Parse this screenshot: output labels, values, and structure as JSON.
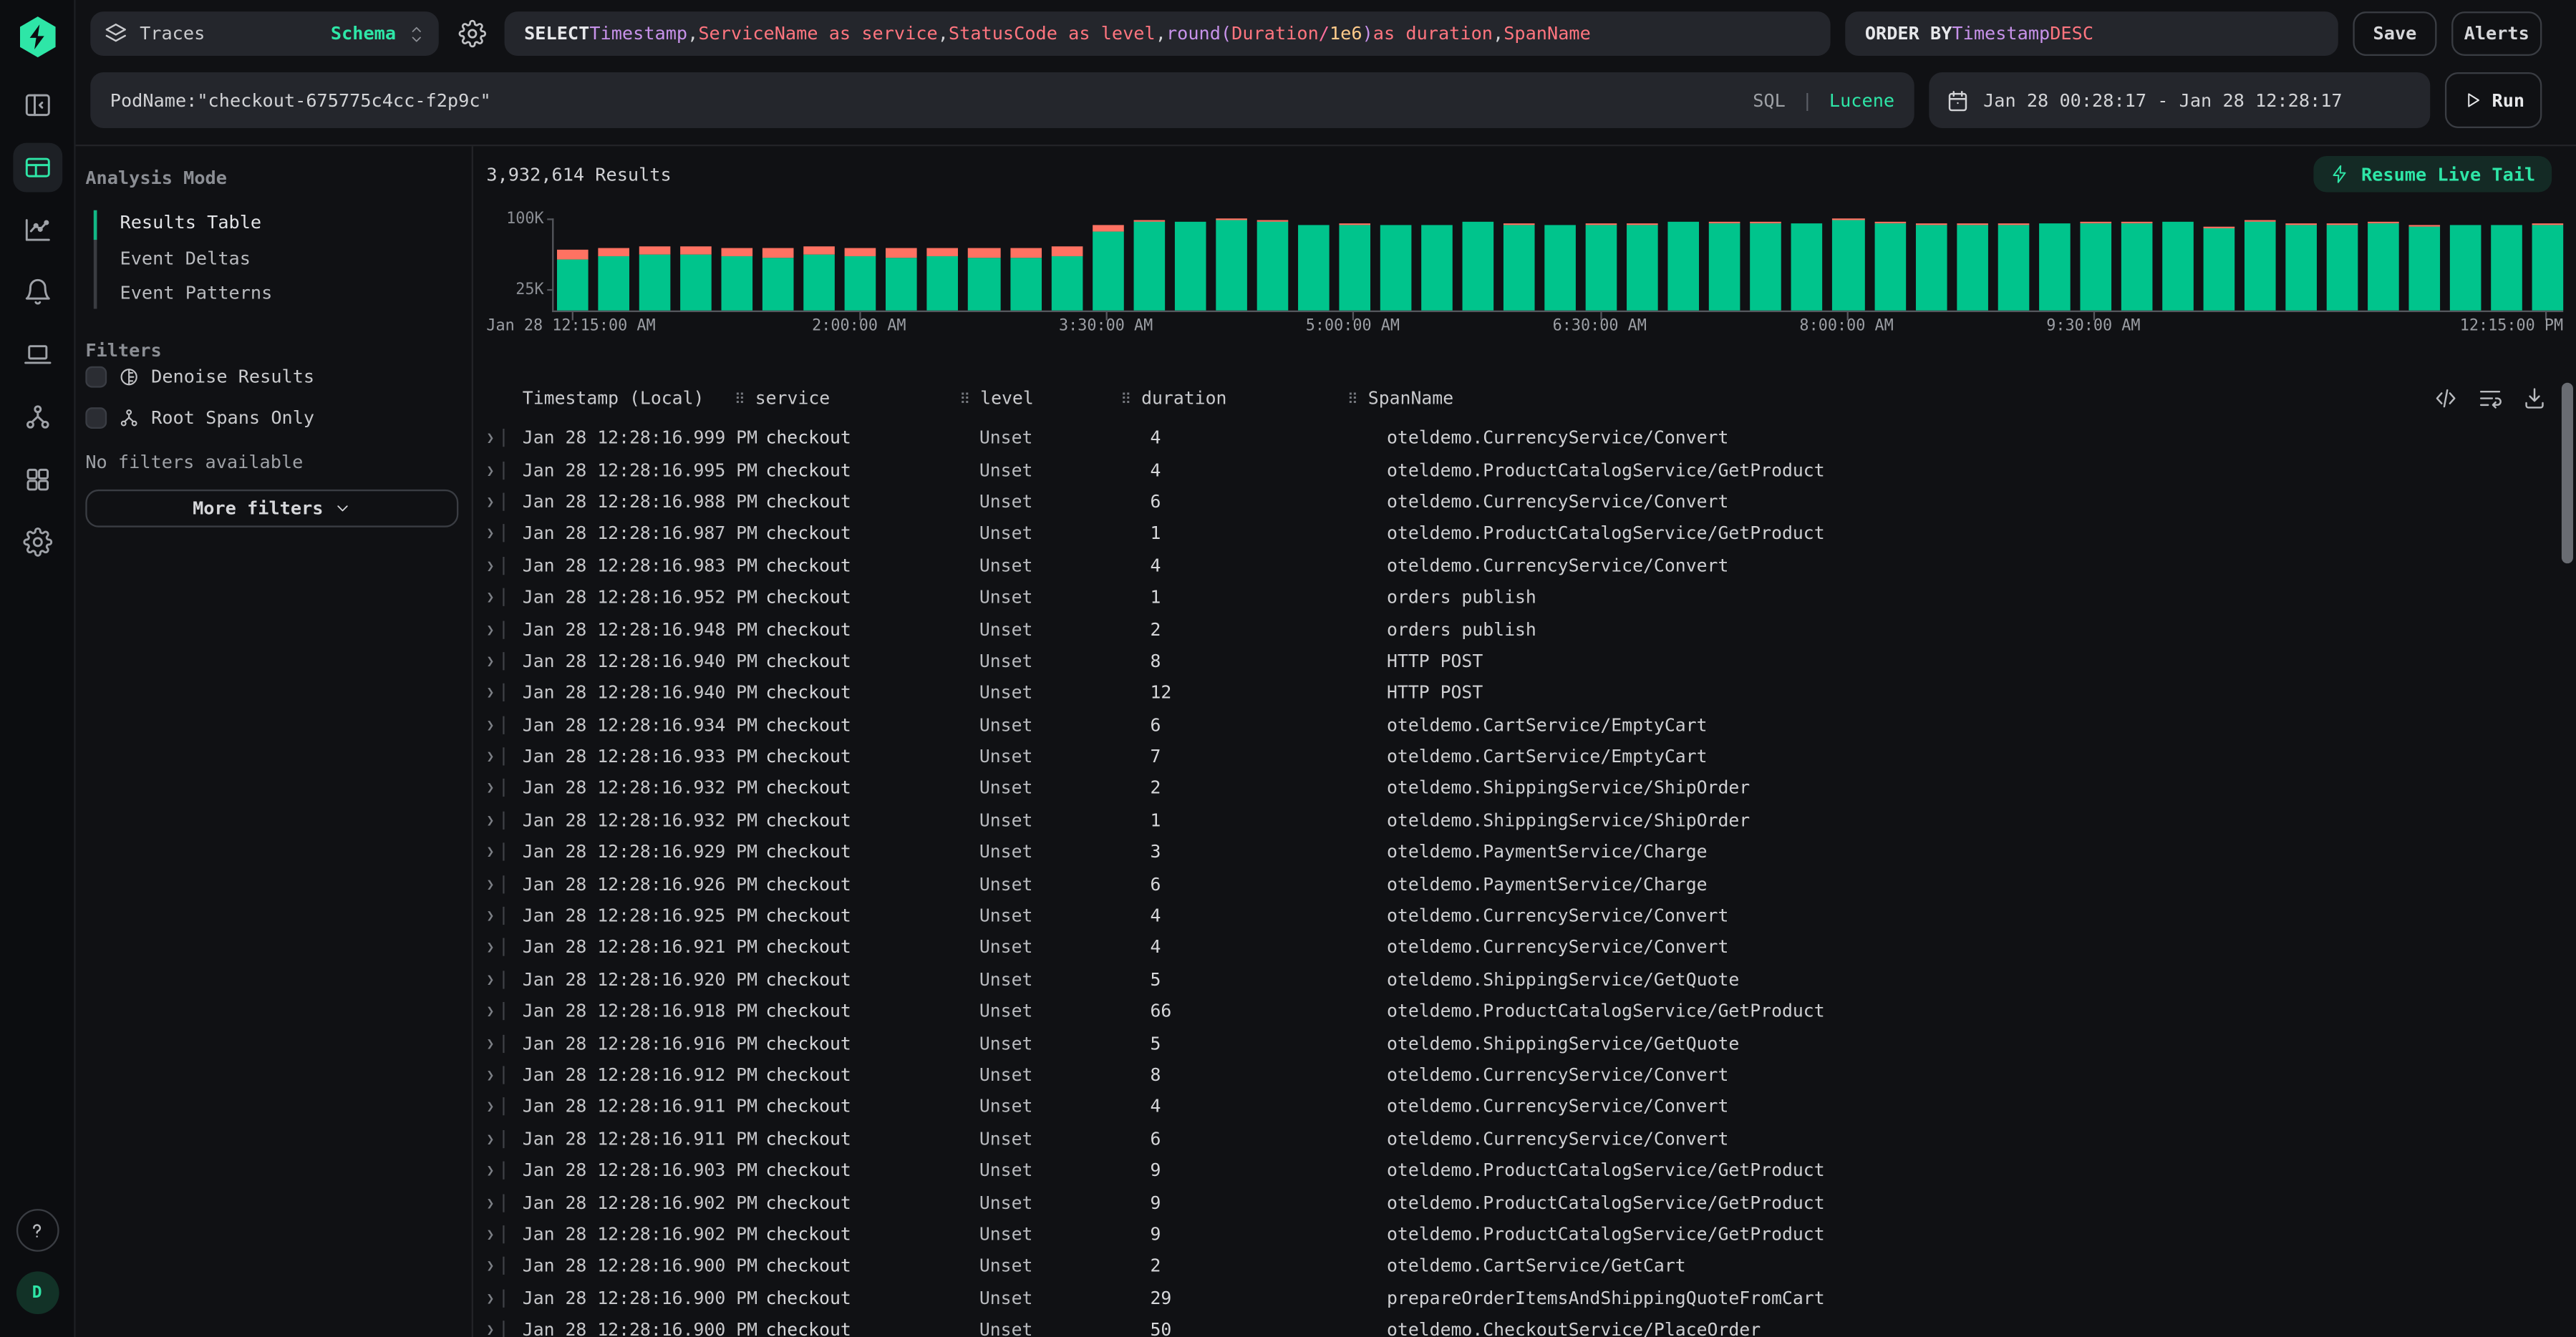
{
  "topbar": {
    "source": {
      "label": "Traces",
      "schema_label": "Schema"
    },
    "sql_tokens": [
      {
        "t": "SELECT ",
        "c": "kw"
      },
      {
        "t": "Timestamp",
        "c": "type"
      },
      {
        "t": ", ",
        "c": "plain"
      },
      {
        "t": "ServiceName as service",
        "c": "field"
      },
      {
        "t": ", ",
        "c": "plain"
      },
      {
        "t": "StatusCode as level",
        "c": "field"
      },
      {
        "t": ", ",
        "c": "plain"
      },
      {
        "t": "round",
        "c": "fn"
      },
      {
        "t": "(",
        "c": "fn"
      },
      {
        "t": "Duration",
        "c": "field"
      },
      {
        "t": " / ",
        "c": "op"
      },
      {
        "t": "1e6",
        "c": "num"
      },
      {
        "t": ")",
        "c": "fn"
      },
      {
        "t": " as duration",
        "c": "field"
      },
      {
        "t": ", ",
        "c": "plain"
      },
      {
        "t": "SpanName",
        "c": "field"
      }
    ],
    "orderby_tokens": [
      {
        "t": "ORDER BY ",
        "c": "kw"
      },
      {
        "t": "Timestamp",
        "c": "type"
      },
      {
        "t": " DESC",
        "c": "field"
      }
    ],
    "save_label": "Save",
    "alerts_label": "Alerts"
  },
  "searchbar": {
    "query": "PodName:\"checkout-675775c4cc-f2p9c\"",
    "lang_sql": "SQL",
    "lang_divider": "|",
    "lang_lucene": "Lucene",
    "time_range": "Jan 28 00:28:17 - Jan 28 12:28:17",
    "run_label": "Run"
  },
  "rail": {
    "avatar_initial": "D",
    "items": [
      "logo",
      "collapse-panel",
      "search-results (active)",
      "chart",
      "alerts",
      "sessions",
      "services",
      "dashboards",
      "settings",
      "help",
      "user-avatar"
    ]
  },
  "left_panel": {
    "analysis_mode": {
      "title": "Analysis Mode",
      "items": [
        "Results Table",
        "Event Deltas",
        "Event Patterns"
      ],
      "active": "Results Table"
    },
    "filters": {
      "title": "Filters",
      "checkboxes": [
        {
          "label": "Denoise Results",
          "icon": "denoise-icon",
          "checked": false
        },
        {
          "label": "Root Spans Only",
          "icon": "hierarchy-icon",
          "checked": false
        }
      ],
      "empty_text": "No filters available",
      "more_label": "More filters"
    }
  },
  "results": {
    "count_label": "3,932,614 Results",
    "live_tail_label": "Resume Live Tail"
  },
  "chart_data": {
    "type": "bar",
    "stacked": true,
    "title": "Results over time histogram",
    "bucket_minutes": 15,
    "categories": [
      "12:15 AM",
      "12:30 AM",
      "12:45 AM",
      "1:00 AM",
      "1:15 AM",
      "1:30 AM",
      "1:45 AM",
      "2:00 AM",
      "2:15 AM",
      "2:30 AM",
      "2:45 AM",
      "3:00 AM",
      "3:15 AM",
      "3:30 AM",
      "3:45 AM",
      "4:00 AM",
      "4:15 AM",
      "4:30 AM",
      "4:45 AM",
      "5:00 AM",
      "5:15 AM",
      "5:30 AM",
      "5:45 AM",
      "6:00 AM",
      "6:15 AM",
      "6:30 AM",
      "6:45 AM",
      "7:00 AM",
      "7:15 AM",
      "7:30 AM",
      "7:45 AM",
      "8:00 AM",
      "8:15 AM",
      "8:30 AM",
      "8:45 AM",
      "9:00 AM",
      "9:15 AM",
      "9:30 AM",
      "9:45 AM",
      "10:00 AM",
      "10:15 AM",
      "10:30 AM",
      "10:45 AM",
      "11:00 AM",
      "11:15 AM",
      "11:30 AM",
      "11:45 AM",
      "12:00 PM",
      "12:15 PM"
    ],
    "series": [
      {
        "name": "ok",
        "color": "#00c48c",
        "values": [
          55000,
          58000,
          59000,
          59000,
          58000,
          57000,
          59000,
          58000,
          57000,
          58000,
          57000,
          57000,
          58000,
          84000,
          95000,
          94000,
          96000,
          94000,
          92000,
          92000,
          92000,
          92000,
          95000,
          92000,
          92000,
          92000,
          92000,
          94000,
          93000,
          93000,
          93000,
          96000,
          93000,
          92000,
          92000,
          92000,
          93000,
          93000,
          93000,
          94000,
          88000,
          95000,
          92000,
          92000,
          93000,
          90000,
          91000,
          91000,
          92000
        ]
      },
      {
        "name": "error",
        "color": "#ff7262",
        "values": [
          10000,
          9000,
          9000,
          9000,
          9000,
          10000,
          9000,
          9000,
          9000,
          9000,
          9000,
          9000,
          10000,
          7000,
          600,
          0,
          800,
          400,
          0,
          500,
          0,
          0,
          0,
          400,
          0,
          500,
          600,
          0,
          900,
          400,
          0,
          700,
          400,
          500,
          400,
          500,
          0,
          500,
          500,
          0,
          800,
          500,
          400,
          500,
          800,
          1000,
          0,
          0,
          600
        ]
      }
    ],
    "ylim": [
      0,
      100000
    ],
    "yticks": [
      {
        "label": "100K",
        "value": 100000
      },
      {
        "label": "25K",
        "value": 25000
      }
    ],
    "xticks": [
      {
        "index": 0,
        "label": "Jan 28 12:15:00 AM"
      },
      {
        "index": 7,
        "label": "2:00:00 AM"
      },
      {
        "index": 13,
        "label": "3:30:00 AM"
      },
      {
        "index": 19,
        "label": "5:00:00 AM"
      },
      {
        "index": 25,
        "label": "6:30:00 AM"
      },
      {
        "index": 31,
        "label": "8:00:00 AM"
      },
      {
        "index": 37,
        "label": "9:30:00 AM"
      },
      {
        "index": 48,
        "label": "12:15:00 PM"
      }
    ],
    "grid": false,
    "legend": false
  },
  "table": {
    "columns": [
      {
        "label": "Timestamp (Local)",
        "handle": false
      },
      {
        "label": "service",
        "handle": true
      },
      {
        "label": "level",
        "handle": true
      },
      {
        "label": "duration",
        "handle": true
      },
      {
        "label": "SpanName",
        "handle": true
      }
    ],
    "rows": [
      [
        "Jan 28 12:28:16.999 PM",
        "checkout",
        "Unset",
        "4",
        "oteldemo.CurrencyService/Convert"
      ],
      [
        "Jan 28 12:28:16.995 PM",
        "checkout",
        "Unset",
        "4",
        "oteldemo.ProductCatalogService/GetProduct"
      ],
      [
        "Jan 28 12:28:16.988 PM",
        "checkout",
        "Unset",
        "6",
        "oteldemo.CurrencyService/Convert"
      ],
      [
        "Jan 28 12:28:16.987 PM",
        "checkout",
        "Unset",
        "1",
        "oteldemo.ProductCatalogService/GetProduct"
      ],
      [
        "Jan 28 12:28:16.983 PM",
        "checkout",
        "Unset",
        "4",
        "oteldemo.CurrencyService/Convert"
      ],
      [
        "Jan 28 12:28:16.952 PM",
        "checkout",
        "Unset",
        "1",
        "orders publish"
      ],
      [
        "Jan 28 12:28:16.948 PM",
        "checkout",
        "Unset",
        "2",
        "orders publish"
      ],
      [
        "Jan 28 12:28:16.940 PM",
        "checkout",
        "Unset",
        "8",
        "HTTP POST"
      ],
      [
        "Jan 28 12:28:16.940 PM",
        "checkout",
        "Unset",
        "12",
        "HTTP POST"
      ],
      [
        "Jan 28 12:28:16.934 PM",
        "checkout",
        "Unset",
        "6",
        "oteldemo.CartService/EmptyCart"
      ],
      [
        "Jan 28 12:28:16.933 PM",
        "checkout",
        "Unset",
        "7",
        "oteldemo.CartService/EmptyCart"
      ],
      [
        "Jan 28 12:28:16.932 PM",
        "checkout",
        "Unset",
        "2",
        "oteldemo.ShippingService/ShipOrder"
      ],
      [
        "Jan 28 12:28:16.932 PM",
        "checkout",
        "Unset",
        "1",
        "oteldemo.ShippingService/ShipOrder"
      ],
      [
        "Jan 28 12:28:16.929 PM",
        "checkout",
        "Unset",
        "3",
        "oteldemo.PaymentService/Charge"
      ],
      [
        "Jan 28 12:28:16.926 PM",
        "checkout",
        "Unset",
        "6",
        "oteldemo.PaymentService/Charge"
      ],
      [
        "Jan 28 12:28:16.925 PM",
        "checkout",
        "Unset",
        "4",
        "oteldemo.CurrencyService/Convert"
      ],
      [
        "Jan 28 12:28:16.921 PM",
        "checkout",
        "Unset",
        "4",
        "oteldemo.CurrencyService/Convert"
      ],
      [
        "Jan 28 12:28:16.920 PM",
        "checkout",
        "Unset",
        "5",
        "oteldemo.ShippingService/GetQuote"
      ],
      [
        "Jan 28 12:28:16.918 PM",
        "checkout",
        "Unset",
        "66",
        "oteldemo.ProductCatalogService/GetProduct"
      ],
      [
        "Jan 28 12:28:16.916 PM",
        "checkout",
        "Unset",
        "5",
        "oteldemo.ShippingService/GetQuote"
      ],
      [
        "Jan 28 12:28:16.912 PM",
        "checkout",
        "Unset",
        "8",
        "oteldemo.CurrencyService/Convert"
      ],
      [
        "Jan 28 12:28:16.911 PM",
        "checkout",
        "Unset",
        "4",
        "oteldemo.CurrencyService/Convert"
      ],
      [
        "Jan 28 12:28:16.911 PM",
        "checkout",
        "Unset",
        "6",
        "oteldemo.CurrencyService/Convert"
      ],
      [
        "Jan 28 12:28:16.903 PM",
        "checkout",
        "Unset",
        "9",
        "oteldemo.ProductCatalogService/GetProduct"
      ],
      [
        "Jan 28 12:28:16.902 PM",
        "checkout",
        "Unset",
        "9",
        "oteldemo.ProductCatalogService/GetProduct"
      ],
      [
        "Jan 28 12:28:16.902 PM",
        "checkout",
        "Unset",
        "9",
        "oteldemo.ProductCatalogService/GetProduct"
      ],
      [
        "Jan 28 12:28:16.900 PM",
        "checkout",
        "Unset",
        "2",
        "oteldemo.CartService/GetCart"
      ],
      [
        "Jan 28 12:28:16.900 PM",
        "checkout",
        "Unset",
        "29",
        "prepareOrderItemsAndShippingQuoteFromCart"
      ],
      [
        "Jan 28 12:28:16.900 PM",
        "checkout",
        "Unset",
        "50",
        "oteldemo.CheckoutService/PlaceOrder"
      ]
    ]
  }
}
